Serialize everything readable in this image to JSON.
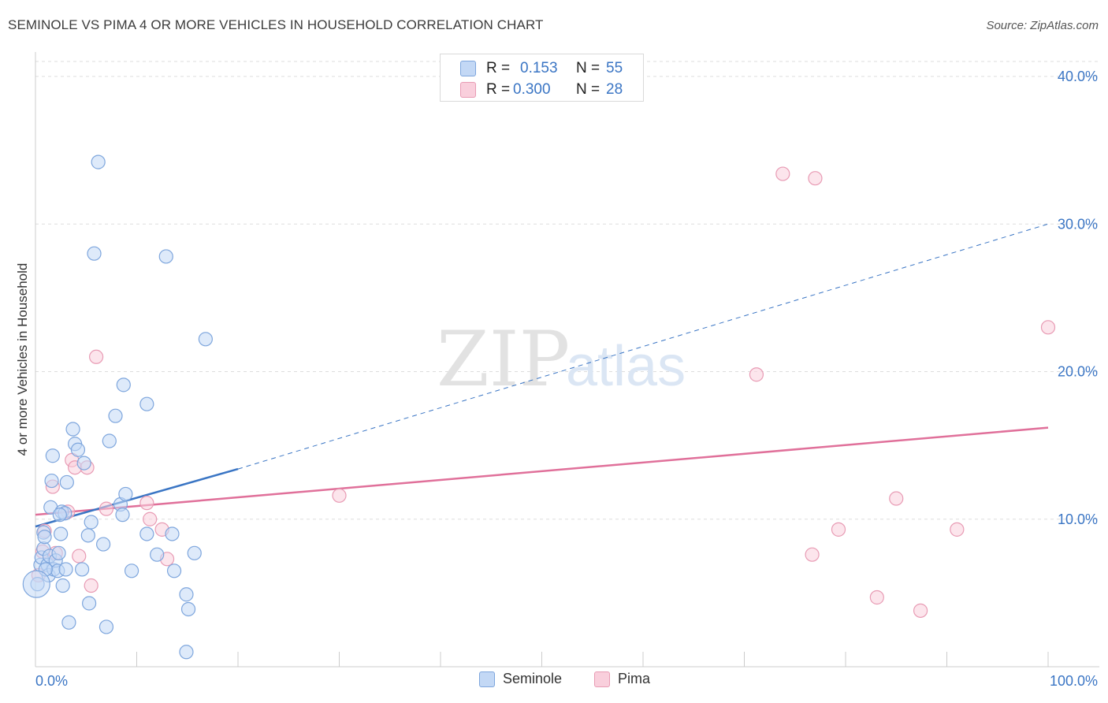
{
  "title": "SEMINOLE VS PIMA 4 OR MORE VEHICLES IN HOUSEHOLD CORRELATION CHART",
  "source": "Source: ZipAtlas.com",
  "watermark": {
    "zip": "ZIP",
    "atlas": "atlas"
  },
  "stats": {
    "seminole": {
      "r_label": "R =",
      "r_value": "0.153",
      "n_label": "N =",
      "n_value": "55"
    },
    "pima": {
      "r_label": "R =",
      "r_value": "0.300",
      "n_label": "N =",
      "n_value": "28"
    }
  },
  "legend": {
    "seminole": "Seminole",
    "pima": "Pima"
  },
  "colors": {
    "seminole_fill": "#c3d8f5",
    "seminole_stroke": "#7ea6dd",
    "seminole_line": "#3a75c4",
    "pima_fill": "#f9cfdc",
    "pima_stroke": "#e89bb4",
    "pima_line": "#e0709a",
    "axis_label": "#3a75c4",
    "grid": "#dddddd"
  },
  "chart_data": {
    "type": "scatter",
    "title": "SEMINOLE VS PIMA 4 OR MORE VEHICLES IN HOUSEHOLD CORRELATION CHART",
    "xlabel": "",
    "ylabel": "4 or more Vehicles in Household",
    "xlim": [
      0,
      100
    ],
    "ylim": [
      0,
      42
    ],
    "x_tick_labels": [
      "0.0%",
      "100.0%"
    ],
    "y_ticks": [
      10,
      20,
      30,
      40
    ],
    "y_tick_labels": [
      "10.0%",
      "20.0%",
      "30.0%",
      "40.0%"
    ],
    "series": [
      {
        "name": "Seminole",
        "r": 0.153,
        "n": 55,
        "trend": {
          "x0": 0,
          "y0": 9.5,
          "x1": 20,
          "y1": 13.4,
          "dash_to_x": 100,
          "dash_to_y": 30.0
        },
        "points": [
          [
            0.2,
            5.6
          ],
          [
            0.5,
            6.9
          ],
          [
            0.6,
            7.4
          ],
          [
            0.8,
            9.1
          ],
          [
            0.8,
            8.0
          ],
          [
            0.9,
            8.8
          ],
          [
            1.2,
            6.9
          ],
          [
            1.3,
            6.2
          ],
          [
            1.4,
            7.5
          ],
          [
            1.5,
            10.8
          ],
          [
            1.6,
            12.6
          ],
          [
            1.7,
            14.3
          ],
          [
            1.8,
            6.6
          ],
          [
            2.0,
            7.2
          ],
          [
            2.2,
            6.5
          ],
          [
            2.3,
            7.7
          ],
          [
            2.5,
            9.0
          ],
          [
            2.6,
            10.5
          ],
          [
            2.7,
            5.5
          ],
          [
            2.9,
            10.4
          ],
          [
            3.0,
            6.6
          ],
          [
            3.1,
            12.5
          ],
          [
            3.3,
            3.0
          ],
          [
            3.7,
            16.1
          ],
          [
            3.9,
            15.1
          ],
          [
            4.2,
            14.7
          ],
          [
            4.8,
            13.8
          ],
          [
            5.2,
            8.9
          ],
          [
            5.3,
            4.3
          ],
          [
            5.5,
            9.8
          ],
          [
            5.8,
            28.0
          ],
          [
            6.2,
            34.2
          ],
          [
            6.7,
            8.3
          ],
          [
            7.0,
            2.7
          ],
          [
            7.3,
            15.3
          ],
          [
            7.9,
            17.0
          ],
          [
            8.4,
            11.0
          ],
          [
            8.6,
            10.3
          ],
          [
            8.7,
            19.1
          ],
          [
            8.9,
            11.7
          ],
          [
            9.5,
            6.5
          ],
          [
            11.0,
            17.8
          ],
          [
            11.0,
            9.0
          ],
          [
            12.0,
            7.6
          ],
          [
            12.9,
            27.8
          ],
          [
            13.5,
            9.0
          ],
          [
            13.7,
            6.5
          ],
          [
            14.9,
            1.0
          ],
          [
            14.9,
            4.9
          ],
          [
            15.1,
            3.9
          ],
          [
            15.7,
            7.7
          ],
          [
            16.8,
            22.2
          ],
          [
            1.0,
            6.6
          ],
          [
            2.4,
            10.3
          ],
          [
            4.6,
            6.6
          ]
        ]
      },
      {
        "name": "Pima",
        "r": 0.3,
        "n": 28,
        "trend": {
          "x0": 0,
          "y0": 10.3,
          "x1": 100,
          "y1": 16.2
        },
        "points": [
          [
            0.3,
            6.2
          ],
          [
            0.7,
            7.8
          ],
          [
            0.9,
            9.2
          ],
          [
            1.7,
            12.2
          ],
          [
            2.0,
            7.7
          ],
          [
            3.2,
            10.5
          ],
          [
            3.6,
            14.0
          ],
          [
            3.9,
            13.5
          ],
          [
            4.3,
            7.5
          ],
          [
            5.1,
            13.5
          ],
          [
            5.5,
            5.5
          ],
          [
            6.0,
            21.0
          ],
          [
            7.0,
            10.7
          ],
          [
            11.0,
            11.1
          ],
          [
            11.3,
            10.0
          ],
          [
            12.5,
            9.3
          ],
          [
            13.0,
            7.3
          ],
          [
            30.0,
            11.6
          ],
          [
            71.2,
            19.8
          ],
          [
            73.8,
            33.4
          ],
          [
            76.7,
            7.6
          ],
          [
            77.0,
            33.1
          ],
          [
            79.3,
            9.3
          ],
          [
            83.1,
            4.7
          ],
          [
            85.0,
            11.4
          ],
          [
            87.4,
            3.8
          ],
          [
            91.0,
            9.3
          ],
          [
            100.0,
            23.0
          ]
        ]
      }
    ]
  }
}
